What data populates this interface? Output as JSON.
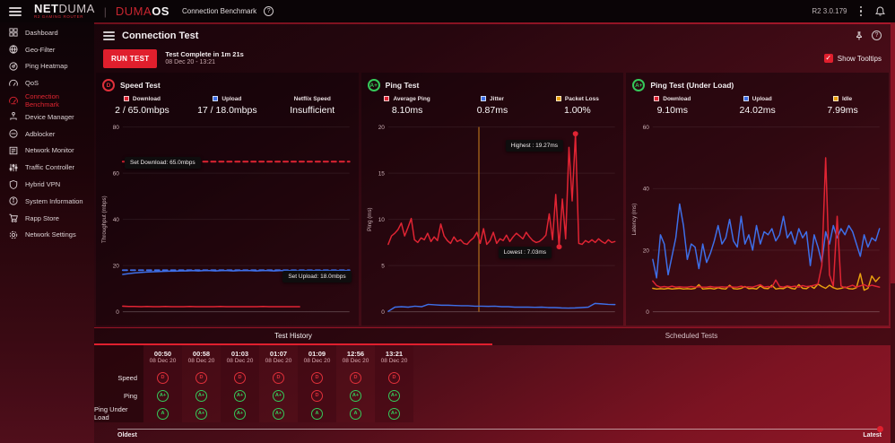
{
  "topbar": {
    "brand": {
      "net": "NET",
      "duma": "DUMA",
      "sub": "R2 GAMING ROUTER"
    },
    "os_brand": {
      "duma": "DUMA",
      "os": "OS"
    },
    "page_title": "Connection Benchmark",
    "help": "?",
    "version": "R2 3.0.179"
  },
  "sidebar": {
    "items": [
      {
        "label": "Dashboard",
        "icon": "dashboard-icon",
        "active": false
      },
      {
        "label": "Geo-Filter",
        "icon": "geo-filter-icon",
        "active": false
      },
      {
        "label": "Ping Heatmap",
        "icon": "ping-heatmap-icon",
        "active": false
      },
      {
        "label": "QoS",
        "icon": "qos-icon",
        "active": false
      },
      {
        "label": "Connection Benchmark",
        "icon": "connection-benchmark-icon",
        "active": true
      },
      {
        "label": "Device Manager",
        "icon": "device-manager-icon",
        "active": false
      },
      {
        "label": "Adblocker",
        "icon": "adblocker-icon",
        "active": false
      },
      {
        "label": "Network Monitor",
        "icon": "network-monitor-icon",
        "active": false
      },
      {
        "label": "Traffic Controller",
        "icon": "traffic-controller-icon",
        "active": false
      },
      {
        "label": "Hybrid VPN",
        "icon": "hybrid-vpn-icon",
        "active": false
      },
      {
        "label": "System Information",
        "icon": "system-information-icon",
        "active": false
      },
      {
        "label": "Rapp Store",
        "icon": "rapp-store-icon",
        "active": false
      },
      {
        "label": "Network Settings",
        "icon": "network-settings-icon",
        "active": false
      }
    ]
  },
  "header": {
    "title": "Connection Test",
    "run_button": "RUN TEST",
    "status_line1": "Test Complete in 1m 21s",
    "status_line2": "08 Dec 20 - 13:21",
    "show_tooltips_label": "Show Tooltips",
    "show_tooltips_checked": true,
    "checkmark": "✓"
  },
  "panels": [
    {
      "grade": "D",
      "grade_color": "#e0303a",
      "title": "Speed Test",
      "legend": [
        {
          "swatch": "#e02433",
          "label": "Download",
          "value": "2 / 65.0mbps"
        },
        {
          "swatch": "#3e6fe8",
          "label": "Upload",
          "value": "17 / 18.0mbps"
        },
        {
          "swatch": null,
          "label": "Netflix Speed",
          "value": "Insufficient"
        }
      ],
      "tooltips": [
        {
          "text": "Set Download: 65.0mbps"
        },
        {
          "text": "Set Upload: 18.0mbps"
        }
      ]
    },
    {
      "grade": "A+",
      "grade_color": "#35c95a",
      "title": "Ping Test",
      "legend": [
        {
          "swatch": "#e02433",
          "label": "Average Ping",
          "value": "8.10ms"
        },
        {
          "swatch": "#3e6fe8",
          "label": "Jitter",
          "value": "0.87ms"
        },
        {
          "swatch": "#e8a00f",
          "label": "Packet Loss",
          "value": "1.00%"
        }
      ],
      "tooltips": [
        {
          "text": "Highest : 19.27ms"
        },
        {
          "text": "Lowest : 7.03ms"
        }
      ]
    },
    {
      "grade": "A+",
      "grade_color": "#35c95a",
      "title": "Ping Test (Under Load)",
      "legend": [
        {
          "swatch": "#e02433",
          "label": "Download",
          "value": "9.10ms"
        },
        {
          "swatch": "#3e6fe8",
          "label": "Upload",
          "value": "24.02ms"
        },
        {
          "swatch": "#e8a00f",
          "label": "Idle",
          "value": "7.99ms"
        }
      ],
      "tooltips": []
    }
  ],
  "chart_data": [
    {
      "type": "line",
      "title": "Speed Test",
      "ylabel": "Throughput (mbps)",
      "ylim": [
        0,
        80
      ],
      "yticks": [
        0,
        20,
        40,
        60,
        80
      ],
      "grid": true,
      "legend_position": "top",
      "series": [
        {
          "name": "Set Download",
          "color": "#e02433",
          "dash": true,
          "width": 2,
          "values": [
            65,
            65
          ]
        },
        {
          "name": "Set Upload",
          "color": "#3e6fe8",
          "dash": true,
          "width": 2,
          "values": [
            18,
            18
          ]
        },
        {
          "name": "Upload",
          "color": "#3e6fe8",
          "width": 1.6,
          "values": [
            16.2,
            16.5,
            16.8,
            17,
            17.2,
            17.3,
            17.4,
            17.5,
            17.6,
            17.6,
            17.7,
            17.7,
            17.8,
            17.7,
            17.8,
            17.8,
            17.7,
            17.8,
            17.8,
            17.7,
            17.8,
            17.8,
            17.8,
            17.7,
            17.8,
            17.8,
            17.7,
            17.8,
            17.8,
            17.8,
            17.7,
            17.8,
            17.8,
            17.8,
            17.8,
            17.7,
            17.8,
            17.8,
            17.8,
            17.8
          ]
        },
        {
          "name": "Download",
          "color": "#e02433",
          "width": 1.6,
          "x_end": 78,
          "values": [
            2.4,
            2.3,
            2.3,
            2.2,
            2.3,
            2.2,
            2.2,
            2.3,
            2.2,
            2.2,
            2.2,
            2.3,
            2.2,
            2.2,
            2.2,
            2.2,
            2.3,
            2.2,
            2.2,
            2.2,
            2.2,
            2.2,
            2.2,
            2.3,
            2.2,
            2.2,
            2.2,
            2.2,
            2.2,
            2.2
          ]
        }
      ],
      "annotations": [
        "Set Download: 65.0mbps",
        "Set Upload: 18.0mbps"
      ]
    },
    {
      "type": "line",
      "title": "Ping Test",
      "ylabel": "Ping (ms)",
      "ylim": [
        0,
        20
      ],
      "yticks": [
        0,
        5,
        10,
        15,
        20
      ],
      "grid": true,
      "markers": [
        {
          "type": "vline",
          "x": 40,
          "color": "#b5701d"
        },
        {
          "type": "dot",
          "x": 82.6,
          "y": 19.27,
          "color": "#e02433"
        },
        {
          "type": "dot",
          "x": 75.4,
          "y": 7.03,
          "color": "#e02433"
        }
      ],
      "series": [
        {
          "name": "Jitter",
          "color": "#3e6fe8",
          "width": 1.5,
          "values": [
            0.05,
            0.5,
            0.55,
            0.5,
            0.6,
            0.55,
            0.8,
            0.75,
            0.7,
            0.7,
            0.68,
            0.65,
            0.65,
            0.6,
            0.6,
            0.58,
            0.6,
            0.55,
            0.55,
            0.5,
            0.5,
            0.5,
            0.48,
            0.5,
            0.45,
            0.45,
            0.42,
            0.4,
            0.42,
            0.45,
            0.5,
            0.9,
            0.85,
            0.8,
            0.78
          ]
        },
        {
          "name": "Average Ping",
          "color": "#e02433",
          "width": 1.5,
          "values": [
            7.3,
            8.2,
            8.5,
            8.9,
            9.6,
            8.2,
            9.1,
            10.1,
            7.8,
            7.5,
            8.0,
            7.8,
            8.5,
            7.6,
            8.1,
            7.7,
            9.5,
            8.2,
            7.7,
            7.4,
            8.1,
            7.6,
            7.8,
            7.4,
            7.3,
            7.7,
            8.0,
            8.6,
            7.4,
            9.0,
            7.3,
            7.7,
            8.6,
            7.4,
            7.9,
            7.7,
            8.3,
            7.6,
            8.1,
            8.5,
            8.2,
            7.9,
            8.6,
            8.1,
            7.7,
            7.5,
            7.6,
            7.9,
            8.3,
            10.6,
            7.8,
            12.7,
            7.03,
            12.2,
            7.9,
            17.8,
            12.0,
            19.27,
            7.4,
            7.3,
            7.7,
            7.5,
            7.8,
            7.5,
            7.9,
            7.6,
            7.4,
            7.8,
            7.5,
            7.6
          ]
        }
      ],
      "highest": 19.27,
      "lowest": 7.03
    },
    {
      "type": "line",
      "title": "Ping Test (Under Load)",
      "ylabel": "Latency (ms)",
      "ylim": [
        0,
        60
      ],
      "yticks": [
        0,
        20,
        40,
        60
      ],
      "grid": true,
      "series": [
        {
          "name": "Upload",
          "color": "#3e6fe8",
          "width": 1.5,
          "values": [
            17,
            11,
            25,
            22,
            12,
            18,
            24,
            35,
            28,
            17,
            22,
            21,
            14,
            22,
            16,
            19,
            23,
            28,
            22,
            24,
            30,
            23,
            21,
            31,
            22,
            25,
            20,
            28,
            22,
            26,
            25,
            27,
            23,
            25,
            31,
            24,
            26,
            22,
            27,
            24,
            26,
            15,
            25,
            21,
            16,
            26,
            22,
            28,
            24,
            27,
            25,
            28,
            26,
            22,
            18,
            25,
            21,
            24,
            23,
            27
          ]
        },
        {
          "name": "Idle",
          "color": "#e8a00f",
          "width": 1.5,
          "values": [
            7.6,
            7.4,
            7.5,
            7.4,
            7.6,
            7.4,
            7.5,
            7.6,
            7.4,
            7.5,
            7.4,
            7.6,
            8.8,
            7.4,
            7.5,
            7.6,
            7.4,
            7.8,
            7.5,
            7.4,
            8.6,
            7.5,
            7.4,
            7.6,
            8.2,
            7.5,
            7.6,
            7.4,
            8.4,
            7.6,
            7.5,
            8.6,
            7.4,
            7.6,
            7.5,
            8.2,
            7.6,
            7.4,
            8.8,
            7.6,
            7.5,
            8.4,
            7.6,
            9.0,
            8.2,
            7.6,
            8.6,
            7.8,
            7.4,
            7.6,
            8.0,
            7.5,
            7.4,
            7.8,
            12.4,
            7.0,
            7.6,
            11.6,
            9.8,
            11.2
          ]
        },
        {
          "name": "Download",
          "color": "#e02433",
          "width": 1.5,
          "values": [
            10,
            8.5,
            8,
            8.2,
            8,
            8.3,
            8,
            8.1,
            8,
            8,
            8.2,
            8,
            8.1,
            8,
            8,
            8.2,
            8,
            8,
            8.1,
            8,
            8.2,
            8,
            8,
            8.3,
            8,
            8.1,
            8,
            8.4,
            8.8,
            8,
            8.2,
            8,
            10.3,
            8.2,
            8,
            8.4,
            8.1,
            8.3,
            8,
            8.5,
            8.2,
            8.3,
            8.6,
            9.0,
            15,
            50,
            12,
            8.3,
            31,
            8.4,
            7.8,
            8.2,
            8.6,
            8.0,
            8.4,
            8.8,
            8.2,
            8.6,
            8.3,
            8.0
          ]
        }
      ]
    }
  ],
  "history": {
    "tabs": [
      {
        "label": "Test History",
        "active": true
      },
      {
        "label": "Scheduled Tests",
        "active": false
      }
    ],
    "columns": [
      {
        "time": "00:50",
        "date": "08 Dec 20"
      },
      {
        "time": "00:58",
        "date": "08 Dec 20"
      },
      {
        "time": "01:03",
        "date": "08 Dec 20"
      },
      {
        "time": "01:07",
        "date": "08 Dec 20"
      },
      {
        "time": "01:09",
        "date": "08 Dec 20"
      },
      {
        "time": "12:56",
        "date": "08 Dec 20"
      },
      {
        "time": "13:21",
        "date": "08 Dec 20"
      }
    ],
    "rows": [
      {
        "label": "Speed",
        "grades": [
          {
            "g": "D",
            "c": "#e0303a"
          },
          {
            "g": "D",
            "c": "#e0303a"
          },
          {
            "g": "D",
            "c": "#e0303a"
          },
          {
            "g": "D",
            "c": "#e0303a"
          },
          {
            "g": "D",
            "c": "#e0303a"
          },
          {
            "g": "D",
            "c": "#e0303a"
          },
          {
            "g": "D",
            "c": "#e0303a"
          }
        ]
      },
      {
        "label": "Ping",
        "grades": [
          {
            "g": "A+",
            "c": "#35c95a"
          },
          {
            "g": "A+",
            "c": "#35c95a"
          },
          {
            "g": "A+",
            "c": "#35c95a"
          },
          {
            "g": "A+",
            "c": "#35c95a"
          },
          {
            "g": "D",
            "c": "#e0303a"
          },
          {
            "g": "A+",
            "c": "#35c95a"
          },
          {
            "g": "A+",
            "c": "#35c95a"
          }
        ]
      },
      {
        "label": "Ping Under Load",
        "grades": [
          {
            "g": "A",
            "c": "#35c95a"
          },
          {
            "g": "A+",
            "c": "#35c95a"
          },
          {
            "g": "A+",
            "c": "#35c95a"
          },
          {
            "g": "A+",
            "c": "#35c95a"
          },
          {
            "g": "A",
            "c": "#35c95a"
          },
          {
            "g": "A",
            "c": "#35c95a"
          },
          {
            "g": "A+",
            "c": "#35c95a"
          }
        ]
      }
    ],
    "oldest": "Oldest",
    "latest": "Latest"
  }
}
